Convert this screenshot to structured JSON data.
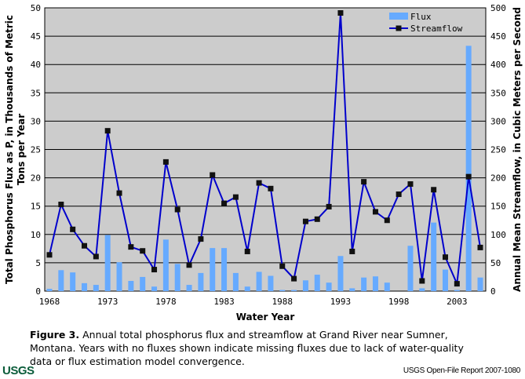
{
  "chart_data": {
    "type": "bar+line",
    "x": [
      1968,
      1969,
      1970,
      1971,
      1972,
      1973,
      1974,
      1975,
      1976,
      1977,
      1978,
      1979,
      1980,
      1981,
      1982,
      1983,
      1984,
      1985,
      1986,
      1987,
      1988,
      1989,
      1990,
      1991,
      1992,
      1993,
      1994,
      1995,
      1996,
      1997,
      1998,
      1999,
      2000,
      2001,
      2002,
      2003,
      2004,
      2005
    ],
    "series": [
      {
        "name": "Flux",
        "type": "bar",
        "axis": "left",
        "color": "#66aaff",
        "values": [
          0.4,
          3.7,
          3.3,
          1.4,
          1.1,
          9.9,
          5.1,
          1.8,
          2.5,
          0.8,
          9.1,
          4.8,
          1.1,
          3.2,
          7.6,
          7.6,
          3.2,
          0.8,
          3.4,
          2.7,
          0.2,
          0.2,
          1.9,
          2.9,
          1.5,
          6.2,
          0.5,
          2.4,
          2.6,
          1.5,
          null,
          8.0,
          0.5,
          12.1,
          3.8,
          0.2,
          43.3,
          2.4
        ]
      },
      {
        "name": "Streamflow",
        "type": "line",
        "axis": "right",
        "color": "#0000cc",
        "values": [
          64,
          153,
          109,
          80,
          61,
          283,
          173,
          78,
          71,
          38,
          228,
          144,
          46,
          92,
          205,
          155,
          166,
          70,
          191,
          181,
          44,
          22,
          123,
          127,
          149,
          491,
          70,
          193,
          140,
          125,
          171,
          189,
          18,
          179,
          60,
          13,
          202,
          77
        ]
      }
    ],
    "xticks": [
      "1968",
      "1973",
      "1978",
      "1983",
      "1988",
      "1993",
      "1998",
      "2003"
    ],
    "yticks_left": [
      "0",
      "5",
      "10",
      "15",
      "20",
      "25",
      "30",
      "35",
      "40",
      "45",
      "50"
    ],
    "yticks_right": [
      "0",
      "50",
      "100",
      "150",
      "200",
      "250",
      "300",
      "350",
      "400",
      "450",
      "500"
    ],
    "ylim_left": [
      0,
      50
    ],
    "ylim_right": [
      0,
      500
    ],
    "xlabel": "Water Year",
    "ylabel_left_line1": "Total Phosphorus Flux as P, in Thousands of Metric",
    "ylabel_left_line2": "Tons per Year",
    "ylabel_right": "Annual Mean Streamflow, in Cubic Meters per Second",
    "legend": [
      "Flux",
      "Streamflow"
    ],
    "legend_position": "top-right",
    "grid": true,
    "background": "#cccccc"
  },
  "caption": {
    "label": "Figure 3.",
    "text": " Annual total phosphorus flux and streamflow at Grand River near Sumner, Montana. Years with no fluxes shown indicate missing fluxes due to lack of water-quality data or flux estimation model convergence."
  },
  "footer": {
    "logo": "USGS",
    "report": "USGS Open-File Report 2007-1080"
  }
}
